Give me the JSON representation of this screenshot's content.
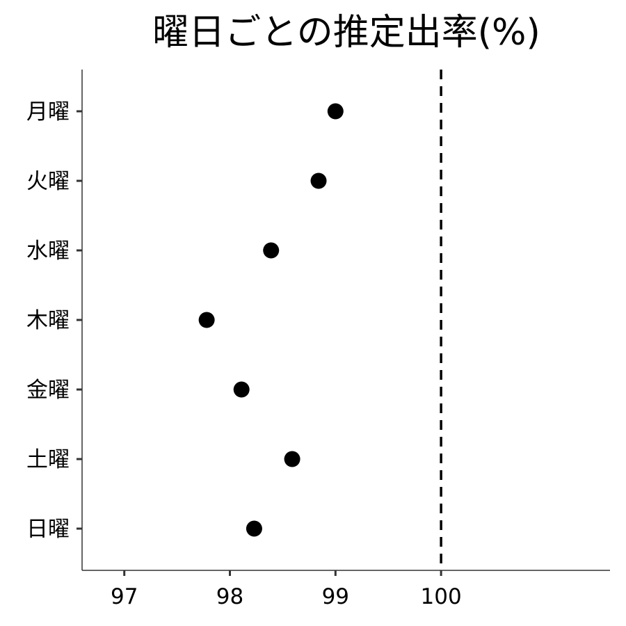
{
  "chart_data": {
    "type": "scatter",
    "title": "曜日ごとの推定出率(%)",
    "xlabel": "",
    "ylabel": "",
    "xlim": [
      96.6,
      101.6
    ],
    "xticks": [
      97,
      98,
      99,
      100
    ],
    "categories": [
      "月曜",
      "火曜",
      "水曜",
      "木曜",
      "金曜",
      "土曜",
      "日曜"
    ],
    "values": [
      99.0,
      98.84,
      98.39,
      97.78,
      98.11,
      98.59,
      98.23
    ],
    "reference_line": {
      "x": 100,
      "style": "dashed"
    },
    "grid": false,
    "legend": "none"
  }
}
